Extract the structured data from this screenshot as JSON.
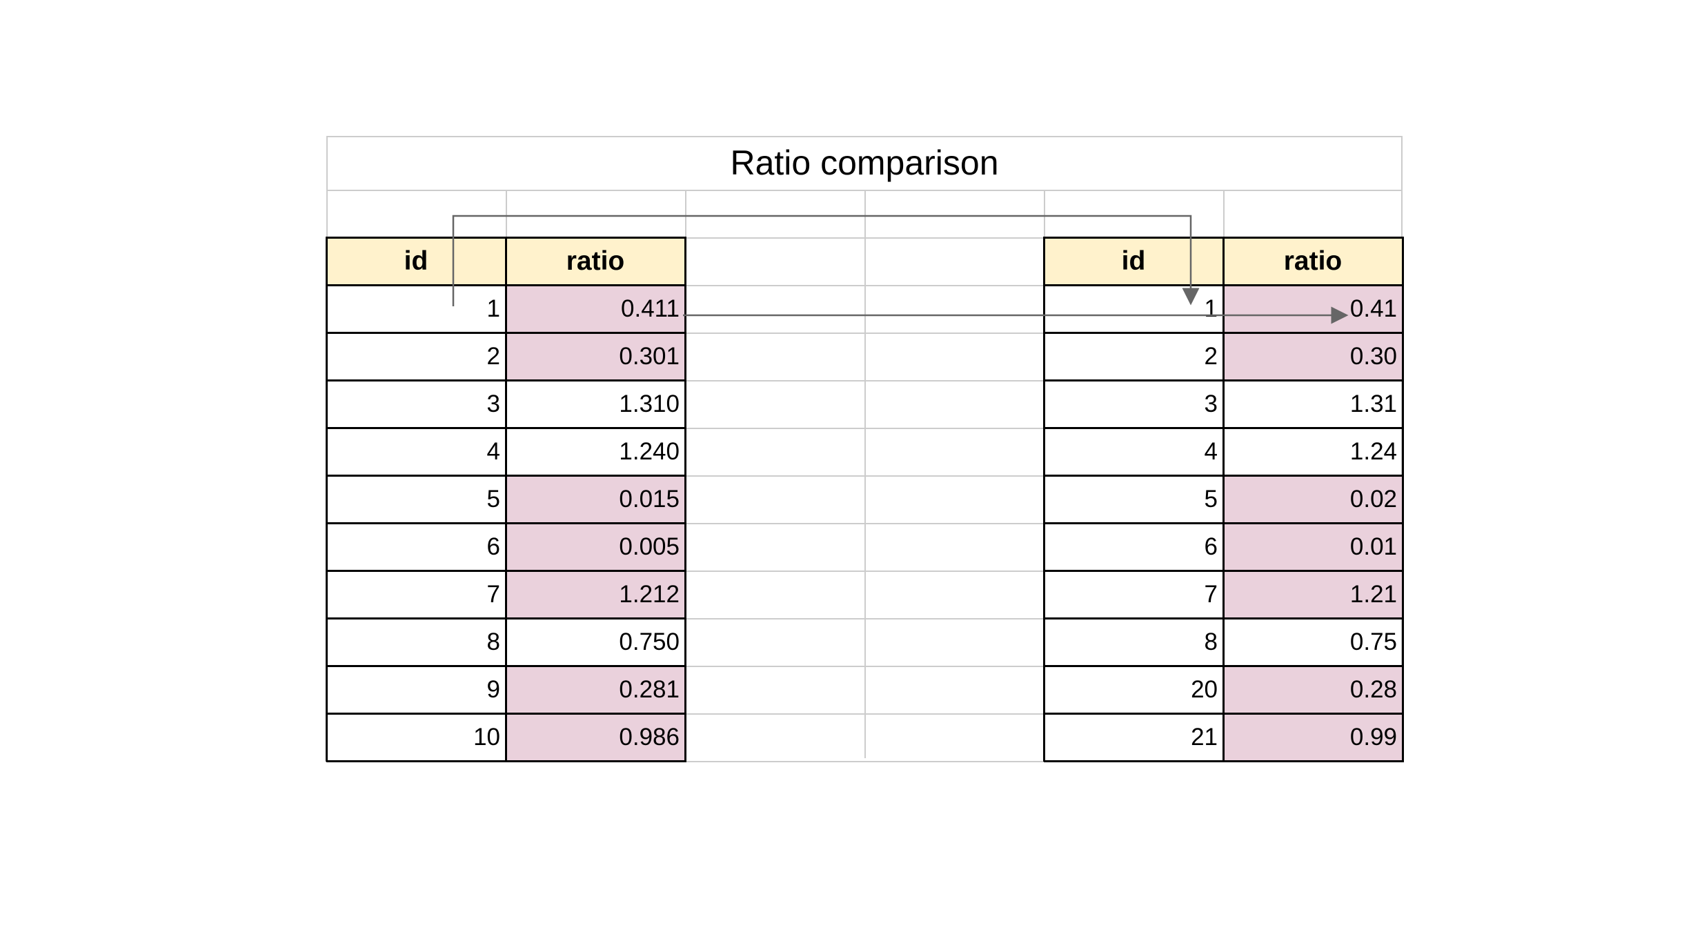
{
  "title": "Ratio comparison",
  "left_table": {
    "headers": [
      "id",
      "ratio"
    ],
    "rows": [
      {
        "id": "1",
        "ratio": "0.411",
        "highlight": true
      },
      {
        "id": "2",
        "ratio": "0.301",
        "highlight": true
      },
      {
        "id": "3",
        "ratio": "1.310",
        "highlight": false
      },
      {
        "id": "4",
        "ratio": "1.240",
        "highlight": false
      },
      {
        "id": "5",
        "ratio": "0.015",
        "highlight": true
      },
      {
        "id": "6",
        "ratio": "0.005",
        "highlight": true
      },
      {
        "id": "7",
        "ratio": "1.212",
        "highlight": true
      },
      {
        "id": "8",
        "ratio": "0.750",
        "highlight": false
      },
      {
        "id": "9",
        "ratio": "0.281",
        "highlight": true
      },
      {
        "id": "10",
        "ratio": "0.986",
        "highlight": true
      }
    ]
  },
  "right_table": {
    "headers": [
      "id",
      "ratio"
    ],
    "rows": [
      {
        "id": "1",
        "ratio": "0.41",
        "highlight": true
      },
      {
        "id": "2",
        "ratio": "0.30",
        "highlight": true
      },
      {
        "id": "3",
        "ratio": "1.31",
        "highlight": false
      },
      {
        "id": "4",
        "ratio": "1.24",
        "highlight": false
      },
      {
        "id": "5",
        "ratio": "0.02",
        "highlight": true
      },
      {
        "id": "6",
        "ratio": "0.01",
        "highlight": true
      },
      {
        "id": "7",
        "ratio": "1.21",
        "highlight": true
      },
      {
        "id": "8",
        "ratio": "0.75",
        "highlight": false
      },
      {
        "id": "20",
        "ratio": "0.28",
        "highlight": true
      },
      {
        "id": "21",
        "ratio": "0.99",
        "highlight": true
      }
    ]
  },
  "colors": {
    "header_fill": "#fff2cc",
    "highlight_fill": "#ead1dc",
    "gridline": "#cccccc",
    "arrow": "#666666"
  }
}
